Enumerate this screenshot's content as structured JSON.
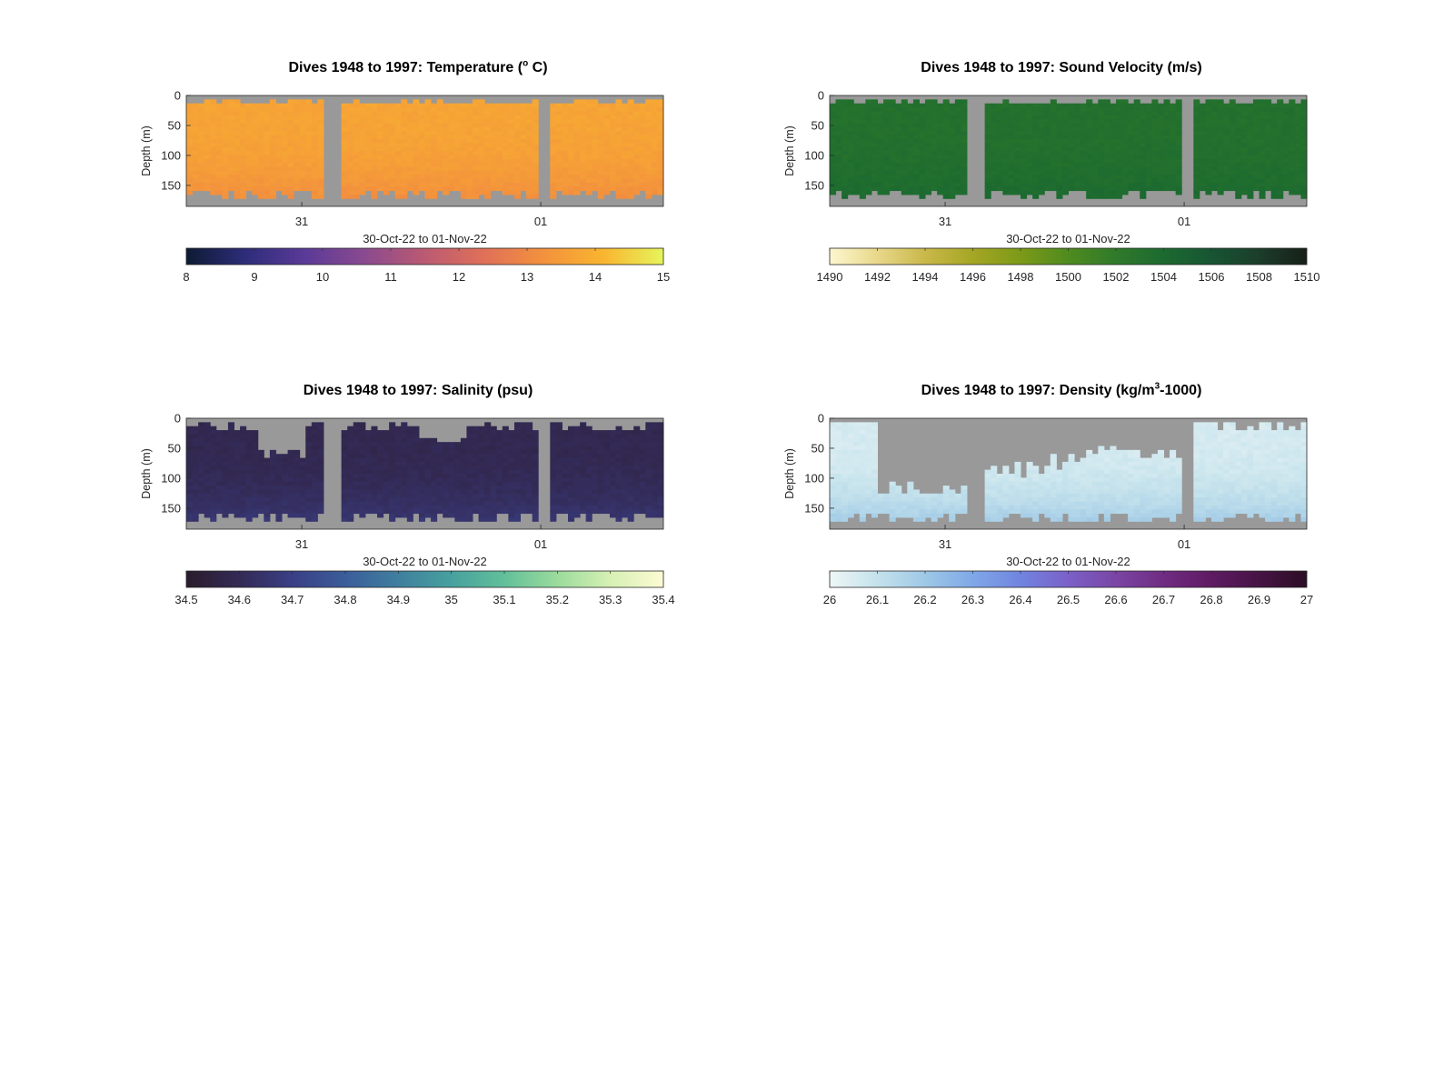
{
  "chart_data": [
    {
      "type": "heatmap",
      "id": "temperature",
      "title_main": "Dives 1948 to 1997: Temperature (",
      "title_sup": "o",
      "title_tail": " C)",
      "xlabel": "30-Oct-22 to 01-Nov-22",
      "ylabel": "Depth (m)",
      "x_tick_labels": [
        "31",
        "01"
      ],
      "y_tick_labels": [
        "0",
        "50",
        "100",
        "150"
      ],
      "ylim": [
        0,
        185
      ],
      "colorbar_ticks": [
        "8",
        "9",
        "10",
        "11",
        "12",
        "13",
        "14",
        "15"
      ],
      "colorbar_range": [
        8,
        15
      ],
      "colormap": [
        "#0d1b33",
        "#2e2d7a",
        "#5b3a98",
        "#8b4a8f",
        "#bb5a72",
        "#e07058",
        "#f3923d",
        "#f9b52f",
        "#e6f55c"
      ],
      "typical_value": 13.7,
      "deep_value": 13.0
    },
    {
      "type": "heatmap",
      "id": "sound_velocity",
      "title_main": "Dives 1948 to 1997: Sound Velocity (m/s)",
      "xlabel": "30-Oct-22 to 01-Nov-22",
      "ylabel": "Depth (m)",
      "x_tick_labels": [
        "31",
        "01"
      ],
      "y_tick_labels": [
        "0",
        "50",
        "100",
        "150"
      ],
      "ylim": [
        0,
        185
      ],
      "colorbar_ticks": [
        "1490",
        "1492",
        "1494",
        "1496",
        "1498",
        "1500",
        "1502",
        "1504",
        "1506",
        "1508",
        "1510"
      ],
      "colorbar_range": [
        1490,
        1510
      ],
      "colormap": [
        "#fdf7cf",
        "#e8d88a",
        "#c9b84a",
        "#a5a624",
        "#7c9a18",
        "#4f8b1f",
        "#2f7a2a",
        "#1c6a30",
        "#175533",
        "#1c3d2a",
        "#161f18"
      ],
      "typical_value": 1503.2,
      "deep_value": 1504.2
    },
    {
      "type": "heatmap",
      "id": "salinity",
      "title_main": "Dives 1948 to 1997: Salinity (psu)",
      "xlabel": "30-Oct-22 to 01-Nov-22",
      "ylabel": "Depth (m)",
      "x_tick_labels": [
        "31",
        "01"
      ],
      "y_tick_labels": [
        "0",
        "50",
        "100",
        "150"
      ],
      "ylim": [
        0,
        185
      ],
      "colorbar_ticks": [
        "34.5",
        "34.6",
        "34.7",
        "34.8",
        "34.9",
        "35",
        "35.1",
        "35.2",
        "35.3",
        "35.4"
      ],
      "colorbar_range": [
        34.5,
        35.4
      ],
      "colormap": [
        "#2a1c2c",
        "#332a55",
        "#3a3f85",
        "#3b5d9a",
        "#3f7f9e",
        "#47a19e",
        "#62c09a",
        "#9bdb9c",
        "#d6f0b4",
        "#fdfbd4"
      ],
      "typical_value": 34.59,
      "deep_value": 34.68
    },
    {
      "type": "heatmap",
      "id": "density",
      "title_main": "Dives 1948 to 1997: Density (kg/m",
      "title_sup": "3",
      "title_tail": "-1000)",
      "xlabel": "30-Oct-22 to 01-Nov-22",
      "ylabel": "Depth (m)",
      "x_tick_labels": [
        "31",
        "01"
      ],
      "y_tick_labels": [
        "0",
        "50",
        "100",
        "150"
      ],
      "ylim": [
        0,
        185
      ],
      "colorbar_ticks": [
        "26",
        "26.1",
        "26.2",
        "26.3",
        "26.4",
        "26.5",
        "26.6",
        "26.7",
        "26.8",
        "26.9",
        "27"
      ],
      "colorbar_range": [
        26,
        27
      ],
      "colormap": [
        "#eef6f6",
        "#c4e2ec",
        "#9ec8e6",
        "#7fa8e8",
        "#7184e0",
        "#7b60c8",
        "#7a45a4",
        "#702c82",
        "#5e1b62",
        "#461344",
        "#2c0d26"
      ],
      "typical_value": 26.06,
      "deep_value": 26.22
    }
  ]
}
